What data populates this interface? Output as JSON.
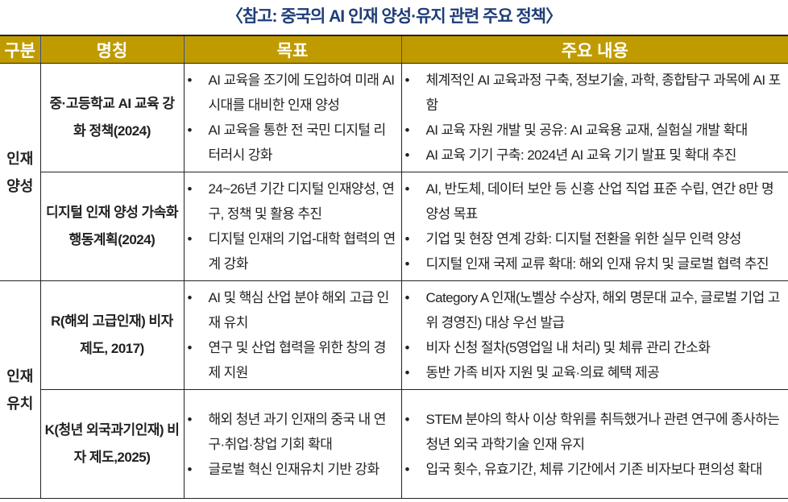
{
  "title": "〈참고: 중국의 AI 인재 양성·유지 관련 주요 정책〉",
  "headers": [
    "구분",
    "명칭",
    "목표",
    "주요 내용"
  ],
  "colors": {
    "header_bg": "#c09b00",
    "title": "#1f3d78"
  },
  "groups": [
    {
      "category": "인재 양성",
      "rows": [
        {
          "name": "중·고등학교 AI 교육 강화 정책(2024)",
          "goals": [
            "AI 교육을 조기에 도입하여 미래 AI 시대를 대비한 인재 양성",
            "AI 교육을 통한 전 국민 디지털 리터러시 강화"
          ],
          "contents": [
            "체계적인 AI 교육과정 구축, 정보기술, 과학, 종합탐구 과목에 AI 포함",
            "AI 교육 자원 개발 및 공유: AI 교육용 교재, 실험실 개발 확대",
            "AI 교육 기기 구축: 2024년 AI 교육 기기 발표 및 확대 추진"
          ]
        },
        {
          "name": "디지털 인재 양성 가속화 행동계획(2024)",
          "goals": [
            "24~26년 기간 디지털 인재양성, 연구, 정책 및 활용 추진",
            "디지털 인재의 기업-대학 협력의 연계 강화"
          ],
          "contents": [
            "AI, 반도체, 데이터 보안 등 신흥 산업 직업 표준 수립, 연간 8만 명 양성 목표",
            "기업 및 현장 연계 강화: 디지털 전환을 위한 실무 인력 양성",
            "디지털 인재 국제 교류 확대: 해외 인재 유치 및 글로벌 협력 추진"
          ]
        }
      ]
    },
    {
      "category": "인재 유치",
      "rows": [
        {
          "name": "R(해외 고급인재) 비자 제도, 2017)",
          "goals": [
            "AI 및 핵심 산업 분야 해외 고급 인재 유치",
            "연구 및 산업 협력을 위한 창의 경제 지원"
          ],
          "contents": [
            "Category A 인재(노벨상 수상자, 해외 명문대 교수, 글로벌 기업 고위 경영진) 대상 우선 발급",
            "비자 신청 절차(5영업일 내 처리) 및 체류 관리 간소화",
            "동반 가족 비자 지원 및 교육·의료 혜택 제공"
          ]
        },
        {
          "name": "K(청년 외국과기인재) 비자 제도,2025)",
          "goals": [
            "해외 청년 과기 인재의 중국 내 연구·취업·창업 기회 확대",
            "글로벌 혁신 인재유치 기반 강화"
          ],
          "contents": [
            "STEM 분야의 학사 이상 학위를 취득했거나 관련 연구에 종사하는 청년 외국 과학기술 인재 유지",
            "입국 횟수, 유효기간, 체류 기간에서 기존 비자보다 편의성 확대"
          ]
        }
      ]
    }
  ]
}
